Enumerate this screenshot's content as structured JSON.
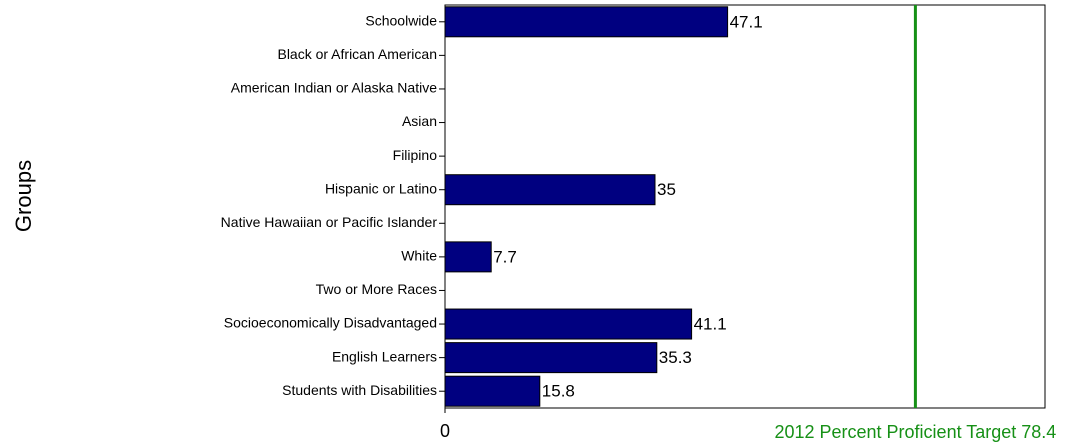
{
  "chart_data": {
    "type": "bar",
    "orientation": "horizontal",
    "y_label": "Groups",
    "categories": [
      "Schoolwide",
      "Black or African American",
      "American Indian or Alaska Native",
      "Asian",
      "Filipino",
      "Hispanic or Latino",
      "Native Hawaiian or Pacific Islander",
      "White",
      "Two or More Races",
      "Socioeconomically Disadvantaged",
      "English Learners",
      "Students with Disabilities"
    ],
    "values": [
      47.1,
      null,
      null,
      null,
      null,
      35,
      null,
      7.7,
      null,
      41.1,
      35.3,
      15.8
    ],
    "color": "#000080",
    "xlim": [
      0,
      100
    ],
    "xticks": [
      0
    ],
    "target": {
      "value": 78.4,
      "label": "2012 Percent Proficient Target 78.4",
      "color": "#169016"
    }
  }
}
